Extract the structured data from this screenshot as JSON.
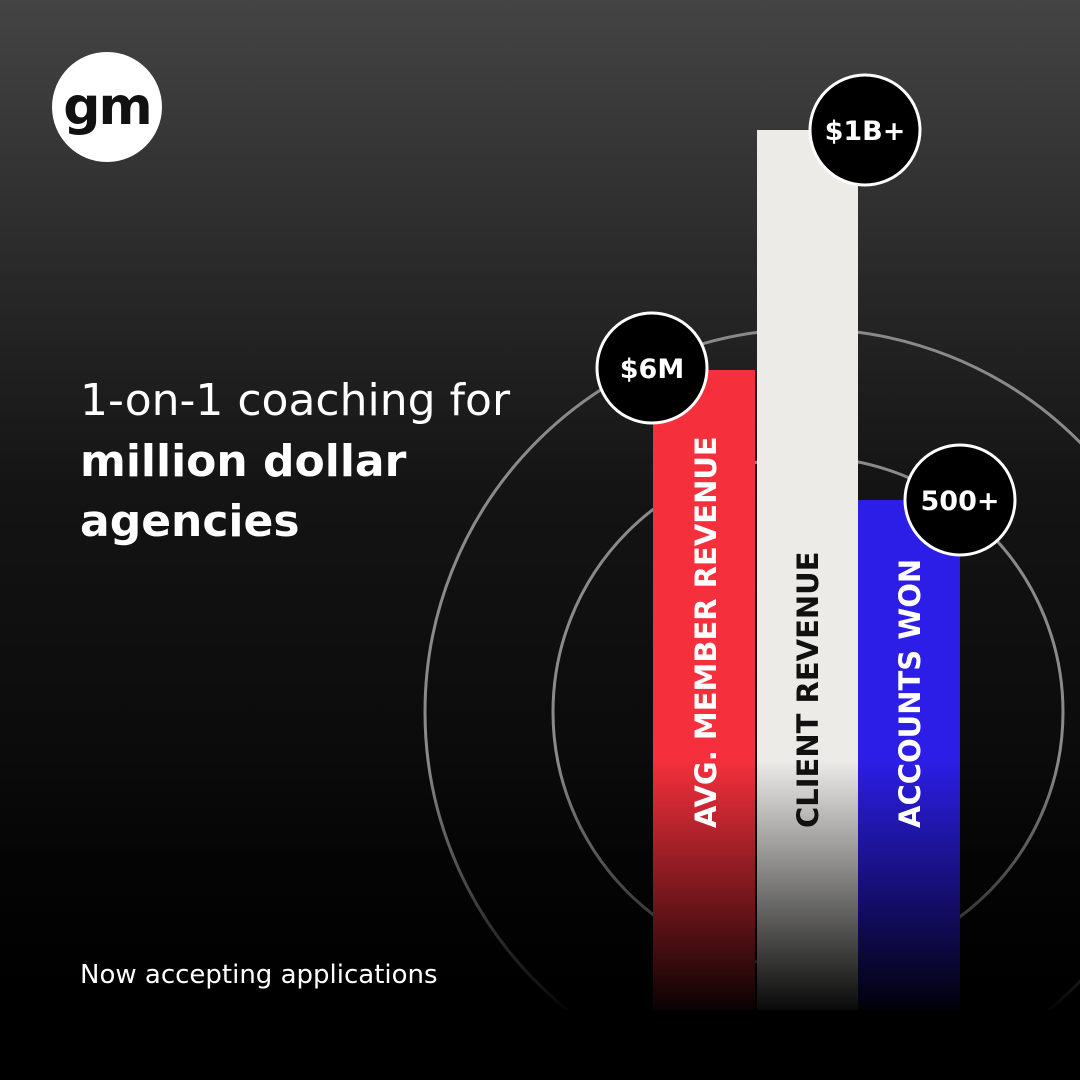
{
  "logo": {
    "text": "gm"
  },
  "headline": {
    "line1": "1-on-1 coaching for",
    "line2": "million dollar",
    "line3": "agencies"
  },
  "tagline": "Now accepting applications",
  "stats": [
    {
      "value": "$6M",
      "label": "AVG. MEMBER REVENUE"
    },
    {
      "value": "$1B+",
      "label": "CLIENT REVENUE"
    },
    {
      "value": "500+",
      "label": "ACCOUNTS WON"
    }
  ]
}
